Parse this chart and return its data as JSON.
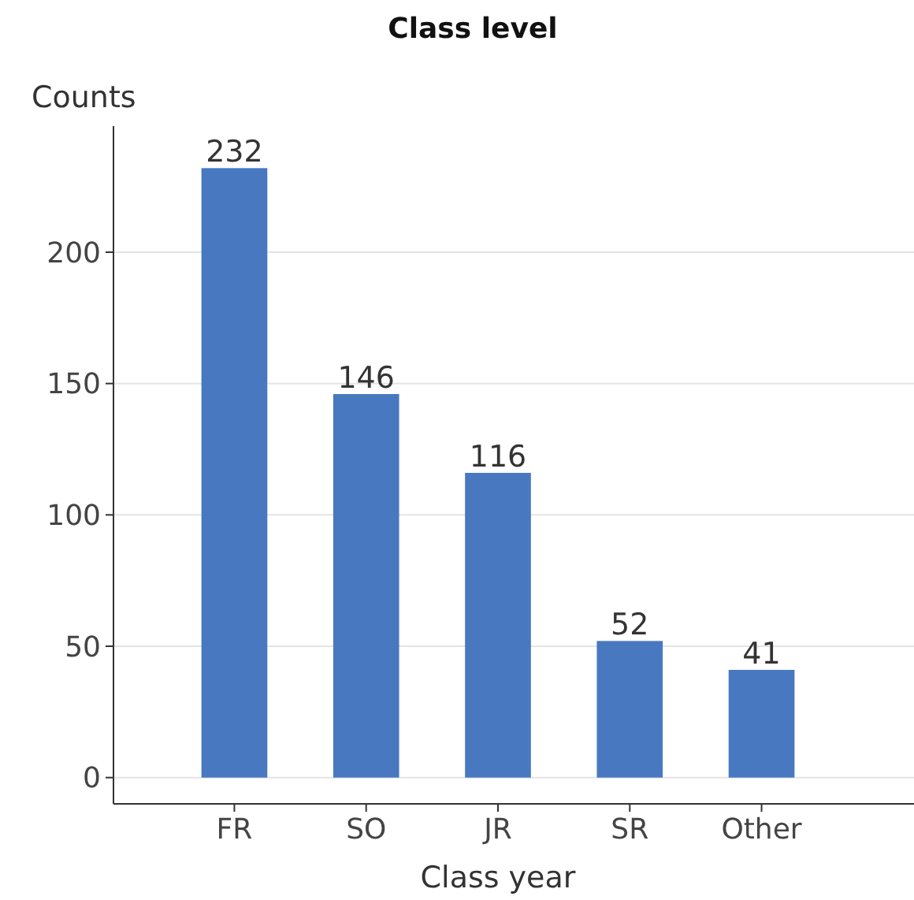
{
  "chart_data": {
    "type": "bar",
    "title": "Class level",
    "xlabel": "Class year",
    "ylabel": "Counts",
    "categories": [
      "FR",
      "SO",
      "JR",
      "SR",
      "Other"
    ],
    "values": [
      232,
      146,
      116,
      52,
      41
    ],
    "color": "#4878c0",
    "ylim": [
      -10,
      248
    ],
    "yticks": [
      0,
      50,
      100,
      150,
      200
    ],
    "grid": "y",
    "data_labels": true
  }
}
